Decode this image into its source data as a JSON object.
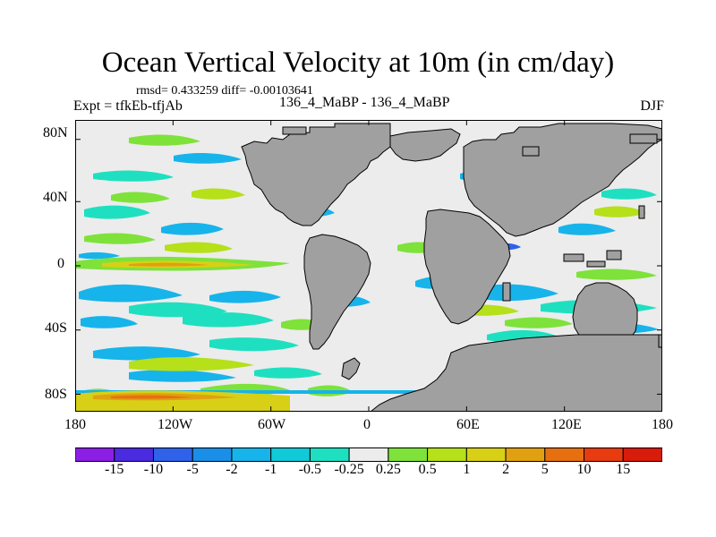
{
  "header": {
    "title": "Ocean Vertical Velocity at 10m (in cm/day)",
    "stats": "rmsd= 0.433259 diff= -0.00103641",
    "experiment": "Expt = tfkEb-tfjAb",
    "comparison": "136_4_MaBP - 136_4_MaBP",
    "season": "DJF"
  },
  "chart_data": {
    "type": "heatmap",
    "title": "Ocean Vertical Velocity at 10m (in cm/day)",
    "x_ticks": [
      "180",
      "120W",
      "60W",
      "0",
      "60E",
      "120E",
      "180"
    ],
    "y_ticks": [
      "80N",
      "40N",
      "0",
      "40S",
      "80S"
    ],
    "xlim": [
      -180,
      180
    ],
    "ylim": [
      -90,
      90
    ],
    "land_color": "#a0a0a0",
    "colorbar": {
      "labels": [
        "-15",
        "-10",
        "-5",
        "-2",
        "-1",
        "-0.5",
        "-0.25",
        "0.25",
        "0.5",
        "1",
        "2",
        "5",
        "10",
        "15"
      ],
      "colors": [
        "#8b1fe6",
        "#4b2be0",
        "#2f62e8",
        "#1a8fe8",
        "#16b4ea",
        "#12c9d8",
        "#1ee0c0",
        "#ececec",
        "#7ee23a",
        "#b5e01a",
        "#d8d016",
        "#e0a010",
        "#e67010",
        "#e63c10",
        "#d81c0c"
      ]
    },
    "features": [
      {
        "name": "equatorial-band",
        "lon": [
          -180,
          -20
        ],
        "lat": [
          -4,
          4
        ],
        "level": "2"
      },
      {
        "name": "southern-ocean-strip",
        "lon": [
          -180,
          180
        ],
        "lat": [
          -88,
          -80
        ],
        "level": "1"
      }
    ]
  }
}
